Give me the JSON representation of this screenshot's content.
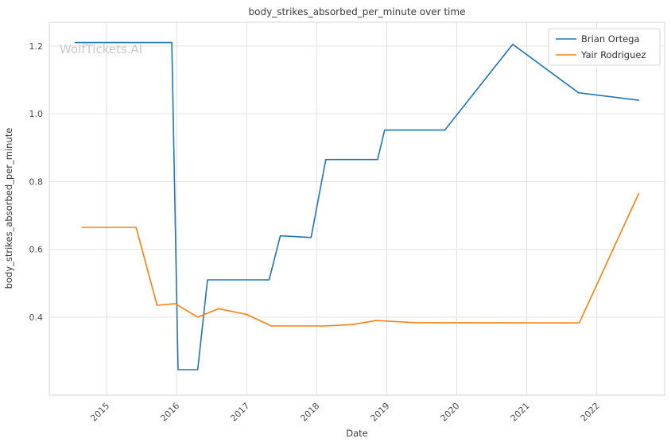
{
  "watermark": "WolfTickets.AI",
  "chart_data": {
    "type": "line",
    "title": "body_strikes_absorbed_per_minute over time",
    "xlabel": "Date",
    "ylabel": "body_strikes_absorbed_per_minute",
    "xlim": [
      2014.18,
      2022.97
    ],
    "ylim": [
      0.17,
      1.27
    ],
    "grid": true,
    "legend_position": "upper right",
    "x_ticks": [
      2015,
      2016,
      2017,
      2018,
      2019,
      2020,
      2021,
      2022
    ],
    "x_tick_labels": [
      "2015",
      "2016",
      "2017",
      "2018",
      "2019",
      "2020",
      "2021",
      "2022"
    ],
    "y_ticks": [
      0.4,
      0.6,
      0.8,
      1.0,
      1.2
    ],
    "y_tick_labels": [
      "0.4",
      "0.6",
      "0.8",
      "1.0",
      "1.2"
    ],
    "series": [
      {
        "name": "Brian Ortega",
        "color": "#1f77b4",
        "x": [
          2014.55,
          2015.93,
          2016.02,
          2016.3,
          2016.44,
          2017.32,
          2017.48,
          2017.92,
          2018.13,
          2018.87,
          2018.97,
          2019.83,
          2020.8,
          2021.74,
          2022.6
        ],
        "y": [
          1.21,
          1.21,
          0.245,
          0.245,
          0.51,
          0.51,
          0.64,
          0.635,
          0.865,
          0.865,
          0.952,
          0.952,
          1.205,
          1.062,
          1.04
        ]
      },
      {
        "name": "Yair Rodriguez",
        "color": "#ff7f0e",
        "x": [
          2014.65,
          2015.42,
          2015.72,
          2015.98,
          2016.3,
          2016.6,
          2017.0,
          2017.35,
          2018.1,
          2018.5,
          2018.85,
          2019.4,
          2021.75,
          2022.6
        ],
        "y": [
          0.665,
          0.665,
          0.435,
          0.44,
          0.4,
          0.425,
          0.408,
          0.374,
          0.374,
          0.378,
          0.39,
          0.384,
          0.383,
          0.765
        ]
      }
    ]
  }
}
